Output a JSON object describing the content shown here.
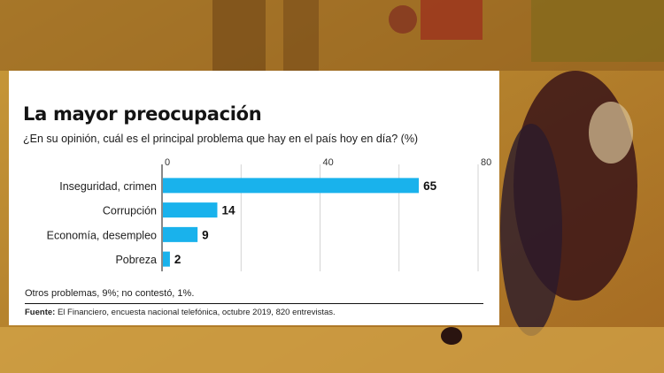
{
  "chart_data": {
    "type": "bar",
    "orientation": "horizontal",
    "title": "La mayor preocupación",
    "subtitle": "¿En su opinión, cuál es el principal problema que hay en el país hoy en día? (%)",
    "categories": [
      "Inseguridad, crimen",
      "Corrupción",
      "Economía, desempleo",
      "Pobreza"
    ],
    "values": [
      65,
      14,
      9,
      2
    ],
    "xlim": [
      0,
      80
    ],
    "xticks": [
      "0",
      "40",
      "80"
    ],
    "grid": true,
    "bar_color": "#19b2ec",
    "note": "Otros problemas, 9%; no contestó, 1%.",
    "source_label": "Fuente:",
    "source_text": "El Financiero, encuesta nacional telefónica, octubre 2019, 820 entrevistas."
  },
  "colors": {
    "background_photo_tint": "#c8922e",
    "card": "#ffffff",
    "bar": "#19b2ec"
  }
}
